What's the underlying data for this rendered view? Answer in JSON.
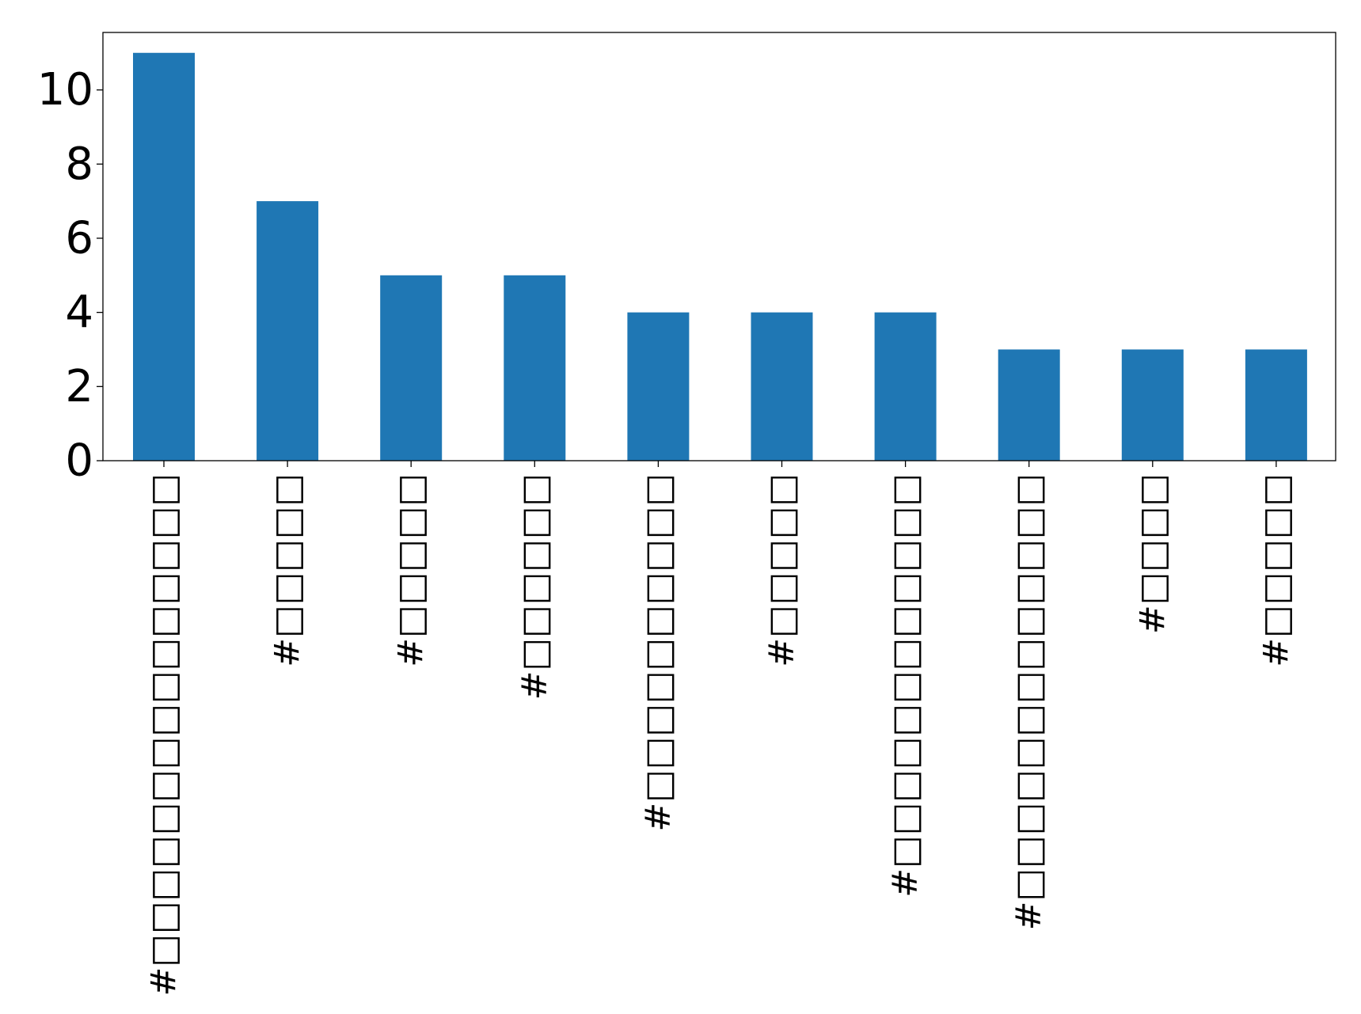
{
  "chart_data": {
    "type": "bar",
    "categories": [
      "#□□□□□□□□□□□□□□□",
      "#□□□□□",
      "#□□□□□",
      "#□□□□□□",
      "#□□□□□□□□□□",
      "#□□□□□",
      "#□□□□□□□□□□□□",
      "#□□□□□□□□□□□□□",
      "#□□□□",
      "#□□□□□"
    ],
    "values": [
      11,
      7,
      5,
      5,
      4,
      4,
      4,
      3,
      3,
      3
    ],
    "ylim": [
      0,
      11.55
    ],
    "yticks": [
      0,
      2,
      4,
      6,
      8,
      10
    ],
    "ytick_labels": [
      "0",
      "2",
      "4",
      "6",
      "8",
      "10"
    ],
    "bar_color": "#1f77b4",
    "grid": false,
    "title": "",
    "xlabel": "",
    "ylabel": ""
  }
}
